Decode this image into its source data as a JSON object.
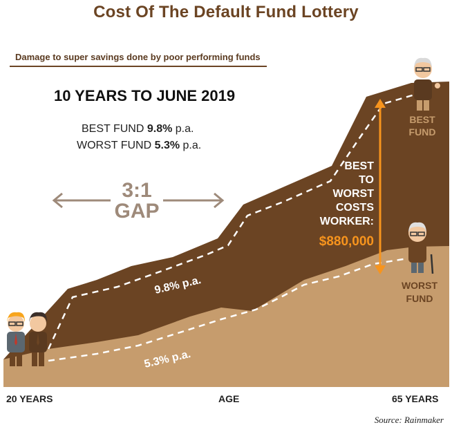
{
  "title": "Cost Of The Default Fund Lottery",
  "subtitle": "Damage to super savings done by poor performing funds",
  "period": "10 YEARS TO JUNE 2019",
  "best": {
    "label": "BEST FUND",
    "rate": "9.8%",
    "suffix": "p.a."
  },
  "worst": {
    "label": "WORST FUND",
    "rate": "5.3%",
    "suffix": "p.a."
  },
  "gap": {
    "ratio": "3:1",
    "word": "GAP"
  },
  "callout": {
    "lines": [
      "BEST",
      "TO",
      "WORST",
      "COSTS",
      "WORKER:"
    ],
    "amount": "$880,000"
  },
  "end_labels": {
    "best": [
      "BEST",
      "FUND"
    ],
    "worst": [
      "WORST",
      "FUND"
    ]
  },
  "series_labels": {
    "best": "9.8% p.a.",
    "worst": "5.3% p.a."
  },
  "x_labels": {
    "start": "20 YEARS",
    "middle": "AGE",
    "end": "65 YEARS"
  },
  "source": "Source: Rainmaker",
  "colors": {
    "dark": "#6b4423",
    "light": "#c69c6d",
    "orange": "#f7941d",
    "gap_text": "#9e8a7a"
  },
  "chart_data": {
    "type": "area",
    "x_start_label": "20 YEARS",
    "x_end_label": "65 YEARS",
    "xlabel": "AGE",
    "series": [
      {
        "name": "BEST FUND",
        "rate_label": "9.8% p.a."
      },
      {
        "name": "WORST FUND",
        "rate_label": "5.3% p.a."
      }
    ],
    "annotations": [
      "3:1 GAP",
      "BEST TO WORST COSTS WORKER: $880,000"
    ]
  }
}
